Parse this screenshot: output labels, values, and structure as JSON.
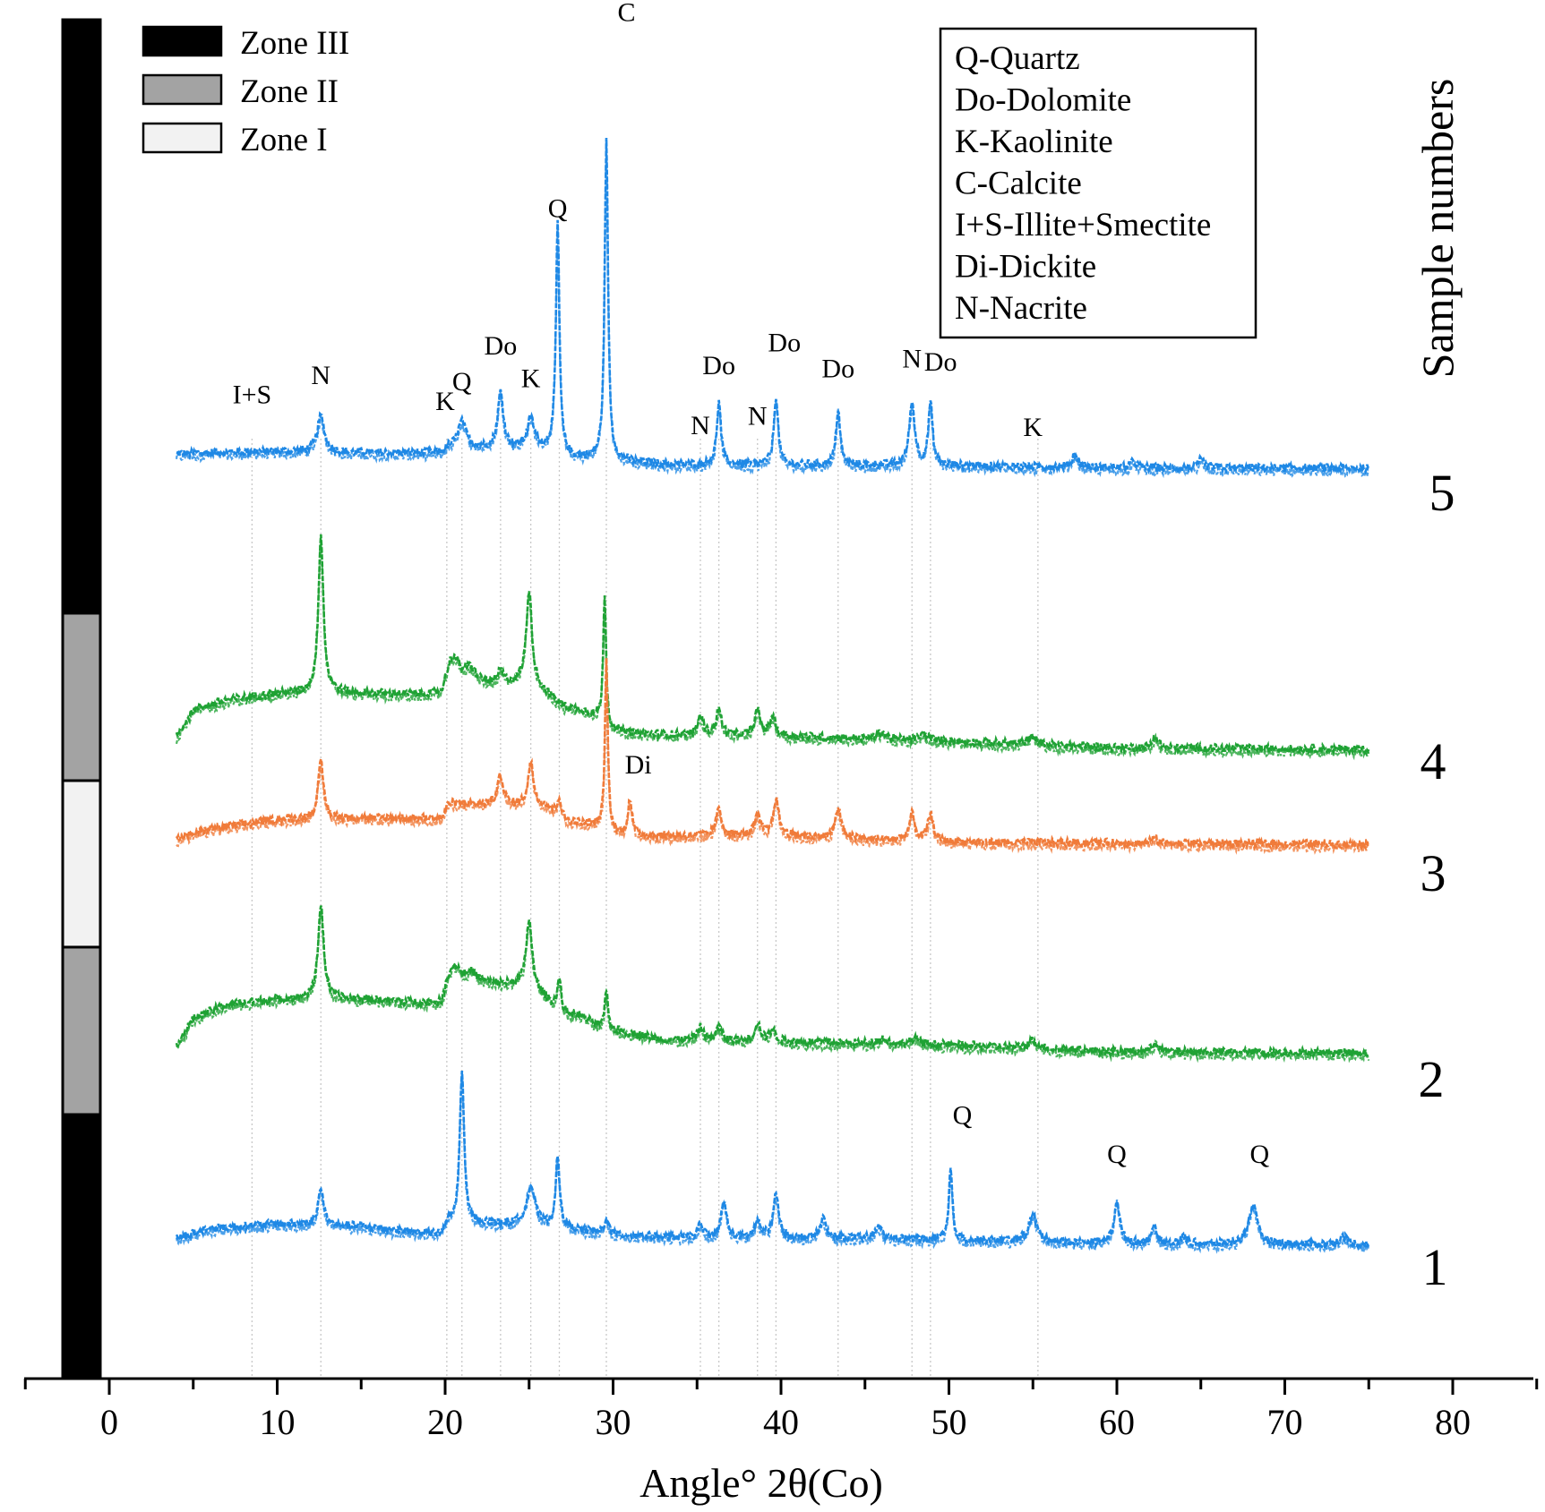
{
  "chart_data": {
    "type": "line",
    "xlabel": "Angle° 2θ(Co)",
    "side_title": "Sample numbers",
    "xlim": [
      -5,
      85
    ],
    "x_ticks": [
      0,
      10,
      20,
      30,
      40,
      50,
      60,
      70,
      80
    ],
    "zone_legend": [
      {
        "label": "Zone III",
        "color": "#000000"
      },
      {
        "label": "Zone II",
        "color": "#a3a3a3"
      },
      {
        "label": "Zone I",
        "color": "#f2f2f2"
      }
    ],
    "zone_bar_top_to_bottom": [
      {
        "zone": "Zone III",
        "color": "#000000"
      },
      {
        "zone": "Zone II",
        "color": "#a3a3a3"
      },
      {
        "zone": "Zone I",
        "color": "#f2f2f2"
      },
      {
        "zone": "Zone II",
        "color": "#a3a3a3"
      },
      {
        "zone": "Zone III",
        "color": "#000000"
      }
    ],
    "mineral_legend": [
      "Q-Quartz",
      "Do-Dolomite",
      "K-Kaolinite",
      "C-Calcite",
      "I+S-Illite+Smectite",
      "Di-Dickite",
      "N-Nacrite"
    ],
    "reference_lines_2theta": [
      8.5,
      12.6,
      20.1,
      21.0,
      23.3,
      25.1,
      26.8,
      29.6,
      35.2,
      36.3,
      38.6,
      39.7,
      43.4,
      47.8,
      48.9,
      55.3
    ],
    "series": [
      {
        "name": "5",
        "color": "#1e88e5",
        "x_start": 4,
        "x_end": 75,
        "baseline": [
          [
            4,
            0.18
          ],
          [
            6,
            0.2
          ],
          [
            10,
            0.22
          ],
          [
            15,
            0.2
          ],
          [
            19.8,
            0.19
          ],
          [
            20.2,
            0.27
          ],
          [
            26.5,
            0.26
          ],
          [
            27.5,
            0.12
          ],
          [
            29,
            0.1
          ],
          [
            30,
            0.08
          ],
          [
            31.5,
            0.05
          ],
          [
            33,
            0.02
          ],
          [
            40,
            0.01
          ],
          [
            50,
            0.0
          ],
          [
            60,
            -0.03
          ],
          [
            75,
            -0.04
          ]
        ],
        "peaks": [
          [
            12.6,
            0.55,
            0.25
          ],
          [
            21.0,
            0.4,
            0.3
          ],
          [
            23.3,
            0.85,
            0.2
          ],
          [
            25.1,
            0.45,
            0.25
          ],
          [
            26.7,
            3.5,
            0.12
          ],
          [
            29.6,
            4.9,
            0.12
          ],
          [
            36.3,
            0.95,
            0.15
          ],
          [
            39.7,
            1.05,
            0.15
          ],
          [
            43.4,
            0.85,
            0.15
          ],
          [
            47.8,
            0.95,
            0.2
          ],
          [
            48.9,
            0.95,
            0.15
          ],
          [
            57.5,
            0.2,
            0.2
          ],
          [
            61.0,
            0.1,
            0.2
          ],
          [
            65.0,
            0.12,
            0.2
          ]
        ],
        "peak_labels": [
          {
            "x": 8.5,
            "text": "I+S",
            "y": 0.95
          },
          {
            "x": 12.6,
            "text": "N",
            "y": 1.25
          },
          {
            "x": 20.0,
            "text": "K",
            "y": 0.85
          },
          {
            "x": 21.0,
            "text": "Q",
            "y": 1.15
          },
          {
            "x": 23.3,
            "text": "Do",
            "y": 1.7
          },
          {
            "x": 25.1,
            "text": "K",
            "y": 1.2
          },
          {
            "x": 26.7,
            "text": "Q",
            "y": 3.8
          },
          {
            "x": 30.8,
            "text": "C",
            "y": 6.8
          },
          {
            "x": 35.2,
            "text": "N",
            "y": 0.48
          },
          {
            "x": 36.3,
            "text": "Do",
            "y": 1.4
          },
          {
            "x": 38.6,
            "text": "N",
            "y": 0.62
          },
          {
            "x": 40.2,
            "text": "Do",
            "y": 1.75
          },
          {
            "x": 43.4,
            "text": "Do",
            "y": 1.35
          },
          {
            "x": 47.8,
            "text": "N",
            "y": 1.5
          },
          {
            "x": 49.5,
            "text": "Do",
            "y": 1.45
          },
          {
            "x": 55.0,
            "text": "K",
            "y": 0.45
          }
        ]
      },
      {
        "name": "4",
        "color": "#1fa234",
        "x_start": 4,
        "x_end": 75,
        "baseline": [
          [
            4,
            0.0
          ],
          [
            5,
            0.4
          ],
          [
            7,
            0.55
          ],
          [
            10,
            0.65
          ],
          [
            13,
            0.67
          ],
          [
            19.8,
            0.62
          ],
          [
            20.2,
            0.85
          ],
          [
            23,
            0.78
          ],
          [
            25,
            0.82
          ],
          [
            26,
            0.65
          ],
          [
            27,
            0.45
          ],
          [
            28,
            0.4
          ],
          [
            29.2,
            0.28
          ],
          [
            29.8,
            0.1
          ],
          [
            31,
            0.05
          ],
          [
            33,
            0.02
          ],
          [
            40,
            0.0
          ],
          [
            50,
            -0.08
          ],
          [
            60,
            -0.18
          ],
          [
            75,
            -0.2
          ]
        ],
        "peaks": [
          [
            12.6,
            2.4,
            0.18
          ],
          [
            20.5,
            0.35,
            0.4
          ],
          [
            21.5,
            0.2,
            0.4
          ],
          [
            23.3,
            0.2,
            0.2
          ],
          [
            25.0,
            1.4,
            0.2
          ],
          [
            29.5,
            2.0,
            0.1
          ],
          [
            35.2,
            0.28,
            0.2
          ],
          [
            36.3,
            0.38,
            0.2
          ],
          [
            38.6,
            0.38,
            0.2
          ],
          [
            39.5,
            0.3,
            0.2
          ],
          [
            46.0,
            0.1,
            0.3
          ],
          [
            48.5,
            0.1,
            0.3
          ],
          [
            55.0,
            0.12,
            0.3
          ],
          [
            62.3,
            0.18,
            0.2
          ]
        ],
        "peak_labels": []
      },
      {
        "name": "3",
        "color": "#f07b3a",
        "x_start": 4,
        "x_end": 75,
        "baseline": [
          [
            4,
            0.0
          ],
          [
            6,
            0.15
          ],
          [
            10,
            0.3
          ],
          [
            15,
            0.32
          ],
          [
            19.8,
            0.32
          ],
          [
            20.2,
            0.55
          ],
          [
            26,
            0.5
          ],
          [
            27,
            0.28
          ],
          [
            29,
            0.2
          ],
          [
            30.5,
            0.05
          ],
          [
            33,
            0.05
          ],
          [
            40,
            0.05
          ],
          [
            50,
            -0.05
          ],
          [
            60,
            -0.06
          ],
          [
            75,
            -0.08
          ]
        ],
        "peaks": [
          [
            12.6,
            0.85,
            0.2
          ],
          [
            23.3,
            0.45,
            0.2
          ],
          [
            25.1,
            0.65,
            0.2
          ],
          [
            26.8,
            0.3,
            0.15
          ],
          [
            29.6,
            2.6,
            0.1
          ],
          [
            31.0,
            0.55,
            0.15
          ],
          [
            36.3,
            0.4,
            0.2
          ],
          [
            38.6,
            0.3,
            0.2
          ],
          [
            39.7,
            0.55,
            0.2
          ],
          [
            43.4,
            0.45,
            0.2
          ],
          [
            47.8,
            0.4,
            0.2
          ],
          [
            48.9,
            0.4,
            0.2
          ],
          [
            62.2,
            0.08,
            0.2
          ]
        ],
        "peak_labels": [
          {
            "x": 31.5,
            "text": "Di",
            "y": 1.0
          }
        ]
      },
      {
        "name": "2",
        "color": "#1fa234",
        "x_start": 4,
        "x_end": 75,
        "baseline": [
          [
            4,
            0.0
          ],
          [
            5,
            0.4
          ],
          [
            7,
            0.62
          ],
          [
            10,
            0.7
          ],
          [
            15,
            0.7
          ],
          [
            19.8,
            0.62
          ],
          [
            20.2,
            0.95
          ],
          [
            25,
            0.92
          ],
          [
            26,
            0.7
          ],
          [
            27,
            0.45
          ],
          [
            28,
            0.45
          ],
          [
            29,
            0.3
          ],
          [
            30,
            0.22
          ],
          [
            31,
            0.18
          ],
          [
            33,
            0.08
          ],
          [
            40,
            0.05
          ],
          [
            50,
            0.0
          ],
          [
            60,
            -0.1
          ],
          [
            75,
            -0.12
          ]
        ],
        "peaks": [
          [
            12.6,
            1.45,
            0.2
          ],
          [
            20.6,
            0.25,
            0.4
          ],
          [
            21.6,
            0.15,
            0.4
          ],
          [
            25.0,
            1.0,
            0.2
          ],
          [
            26.8,
            0.5,
            0.15
          ],
          [
            29.6,
            0.6,
            0.1
          ],
          [
            35.2,
            0.2,
            0.2
          ],
          [
            36.3,
            0.2,
            0.2
          ],
          [
            38.6,
            0.28,
            0.2
          ],
          [
            39.5,
            0.18,
            0.2
          ],
          [
            46.0,
            0.08,
            0.3
          ],
          [
            48.0,
            0.08,
            0.3
          ],
          [
            55.0,
            0.12,
            0.3
          ],
          [
            62.3,
            0.15,
            0.2
          ]
        ],
        "peak_labels": []
      },
      {
        "name": "1",
        "color": "#1e88e5",
        "x_start": 4,
        "x_end": 75,
        "baseline": [
          [
            4,
            0.0
          ],
          [
            6,
            0.15
          ],
          [
            10,
            0.22
          ],
          [
            15,
            0.18
          ],
          [
            19.8,
            0.05
          ],
          [
            20.2,
            0.25
          ],
          [
            25,
            0.2
          ],
          [
            27,
            0.15
          ],
          [
            30,
            0.05
          ],
          [
            35,
            0.0
          ],
          [
            45,
            0.0
          ],
          [
            55,
            -0.05
          ],
          [
            60,
            -0.08
          ],
          [
            75,
            -0.1
          ]
        ],
        "peaks": [
          [
            12.6,
            0.55,
            0.2
          ],
          [
            21.0,
            2.35,
            0.15
          ],
          [
            25.1,
            0.6,
            0.3
          ],
          [
            26.7,
            1.05,
            0.15
          ],
          [
            29.6,
            0.25,
            0.15
          ],
          [
            35.2,
            0.2,
            0.2
          ],
          [
            36.6,
            0.55,
            0.2
          ],
          [
            38.6,
            0.25,
            0.2
          ],
          [
            39.7,
            0.65,
            0.2
          ],
          [
            42.5,
            0.3,
            0.2
          ],
          [
            45.8,
            0.2,
            0.2
          ],
          [
            50.1,
            1.1,
            0.12
          ],
          [
            55.0,
            0.4,
            0.3
          ],
          [
            60.0,
            0.65,
            0.2
          ],
          [
            62.2,
            0.25,
            0.2
          ],
          [
            64.0,
            0.1,
            0.2
          ],
          [
            68.1,
            0.6,
            0.3
          ],
          [
            73.5,
            0.12,
            0.3
          ]
        ],
        "peak_labels": [
          {
            "x": 50.8,
            "text": "Q",
            "y": 1.75
          },
          {
            "x": 60.0,
            "text": "Q",
            "y": 1.15
          },
          {
            "x": 68.5,
            "text": "Q",
            "y": 1.15
          }
        ]
      }
    ]
  }
}
